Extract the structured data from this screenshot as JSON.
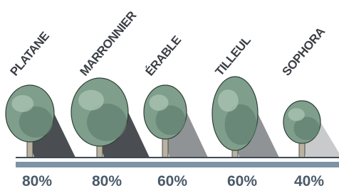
{
  "trees": [
    {
      "name": "PLATANE",
      "share": "80%"
    },
    {
      "name": "MARRONNIER",
      "share": "80%"
    },
    {
      "name": "ÉRABLE",
      "share": "60%"
    },
    {
      "name": "TILLEUL",
      "share": "60%"
    },
    {
      "name": "SOPHORA",
      "share": "40%"
    }
  ]
}
